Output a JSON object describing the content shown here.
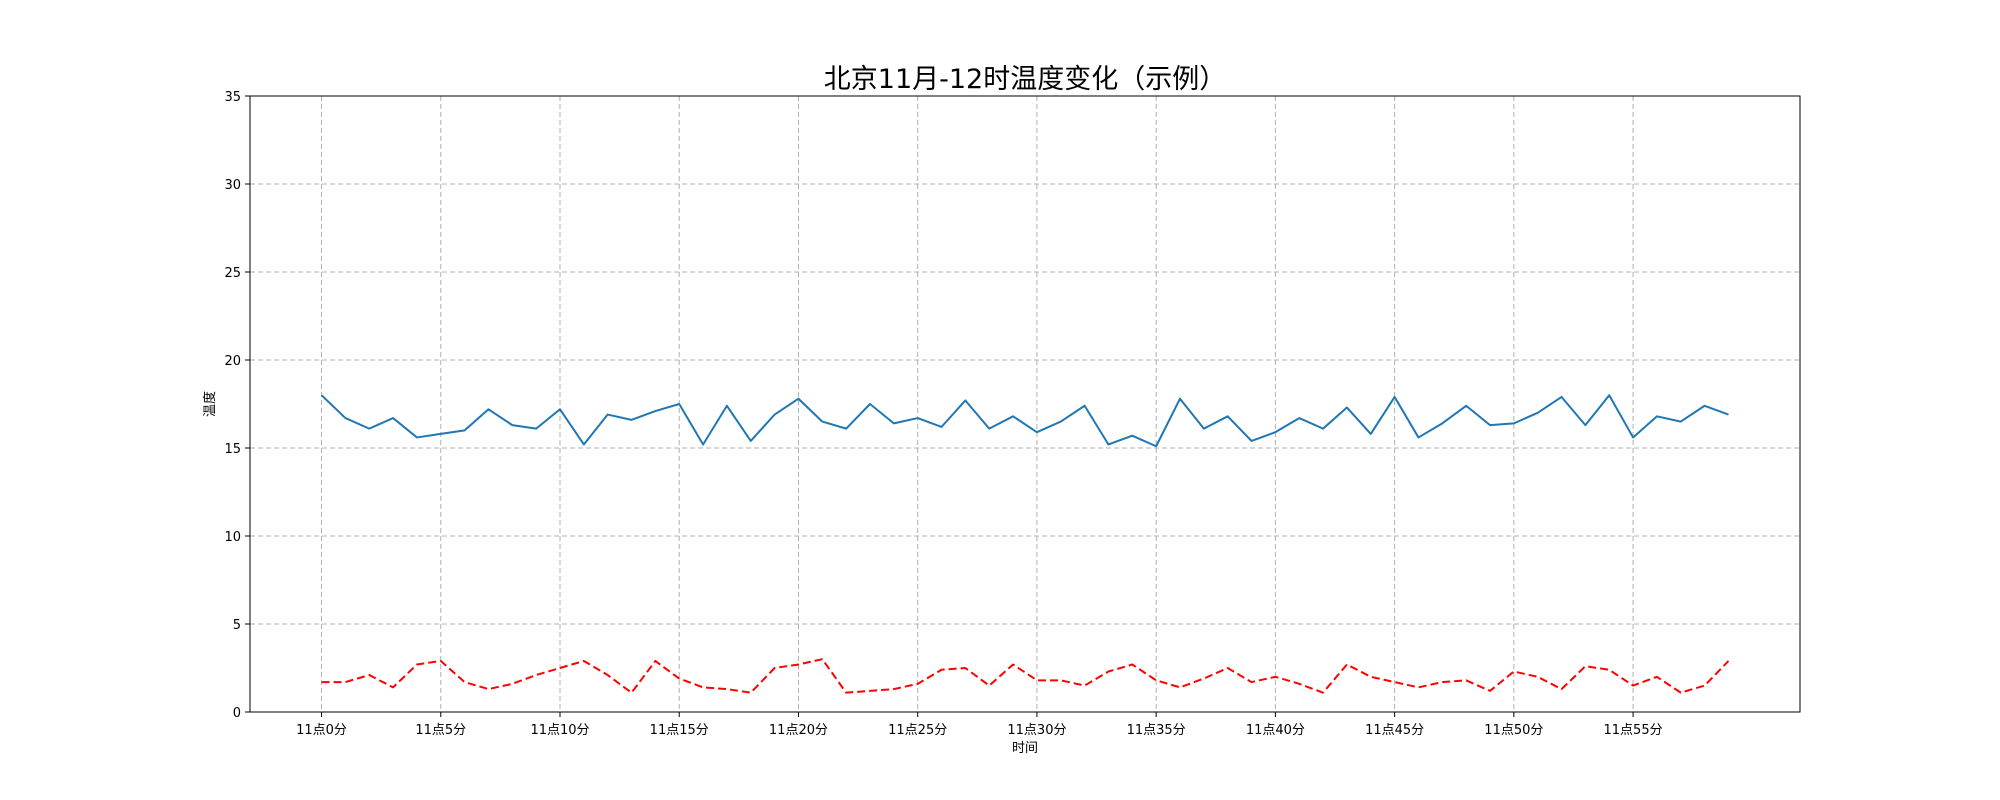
{
  "chart_data": {
    "type": "line",
    "title": "北京11月-12时温度变化（示例）",
    "xlabel": "时间",
    "ylabel": "温度",
    "ylim": [
      0,
      35
    ],
    "yticks": [
      0,
      5,
      10,
      15,
      20,
      25,
      30,
      35
    ],
    "xlim": [
      -3,
      62
    ],
    "x": [
      0,
      1,
      2,
      3,
      4,
      5,
      6,
      7,
      8,
      9,
      10,
      11,
      12,
      13,
      14,
      15,
      16,
      17,
      18,
      19,
      20,
      21,
      22,
      23,
      24,
      25,
      26,
      27,
      28,
      29,
      30,
      31,
      32,
      33,
      34,
      35,
      36,
      37,
      38,
      39,
      40,
      41,
      42,
      43,
      44,
      45,
      46,
      47,
      48,
      49,
      50,
      51,
      52,
      53,
      54,
      55,
      56,
      57,
      58,
      59
    ],
    "x_tick_values": [
      0,
      5,
      10,
      15,
      20,
      25,
      30,
      35,
      40,
      45,
      50,
      55
    ],
    "x_tick_labels": [
      "11点0分",
      "11点5分",
      "11点10分",
      "11点15分",
      "11点20分",
      "11点25分",
      "11点30分",
      "11点35分",
      "11点40分",
      "11点45分",
      "11点50分",
      "11点55分"
    ],
    "grid": true,
    "series": [
      {
        "color": "#1f77b4",
        "linestyle": "solid",
        "values": [
          18.0,
          16.7,
          16.1,
          16.7,
          15.6,
          15.8,
          16.0,
          17.2,
          16.3,
          16.1,
          17.2,
          15.2,
          16.9,
          16.6,
          17.1,
          17.5,
          15.2,
          17.4,
          15.4,
          16.9,
          17.8,
          16.5,
          16.1,
          17.5,
          16.4,
          16.7,
          16.2,
          17.7,
          16.1,
          16.8,
          15.9,
          16.5,
          17.4,
          15.2,
          15.7,
          15.1,
          17.8,
          16.1,
          16.8,
          15.4,
          15.9,
          16.7,
          16.1,
          17.3,
          15.8,
          17.9,
          15.6,
          16.4,
          17.4,
          16.3,
          16.4,
          17.0,
          17.9,
          16.3,
          18.0,
          15.6,
          16.8,
          16.5,
          17.4,
          16.9
        ]
      },
      {
        "color": "#ff0000",
        "linestyle": "dashed",
        "values": [
          1.7,
          1.7,
          2.1,
          1.4,
          2.7,
          2.9,
          1.7,
          1.3,
          1.6,
          2.1,
          2.5,
          2.9,
          2.1,
          1.1,
          2.9,
          1.9,
          1.4,
          1.3,
          1.1,
          2.5,
          2.7,
          3.0,
          1.1,
          1.2,
          1.3,
          1.6,
          2.4,
          2.5,
          1.5,
          2.7,
          1.8,
          1.8,
          1.5,
          2.3,
          2.7,
          1.8,
          1.4,
          1.9,
          2.5,
          1.7,
          2.0,
          1.6,
          1.1,
          2.7,
          2.0,
          1.7,
          1.4,
          1.7,
          1.8,
          1.2,
          2.3,
          2.0,
          1.3,
          2.6,
          2.4,
          1.5,
          2.0,
          1.1,
          1.5,
          2.9
        ]
      }
    ]
  }
}
